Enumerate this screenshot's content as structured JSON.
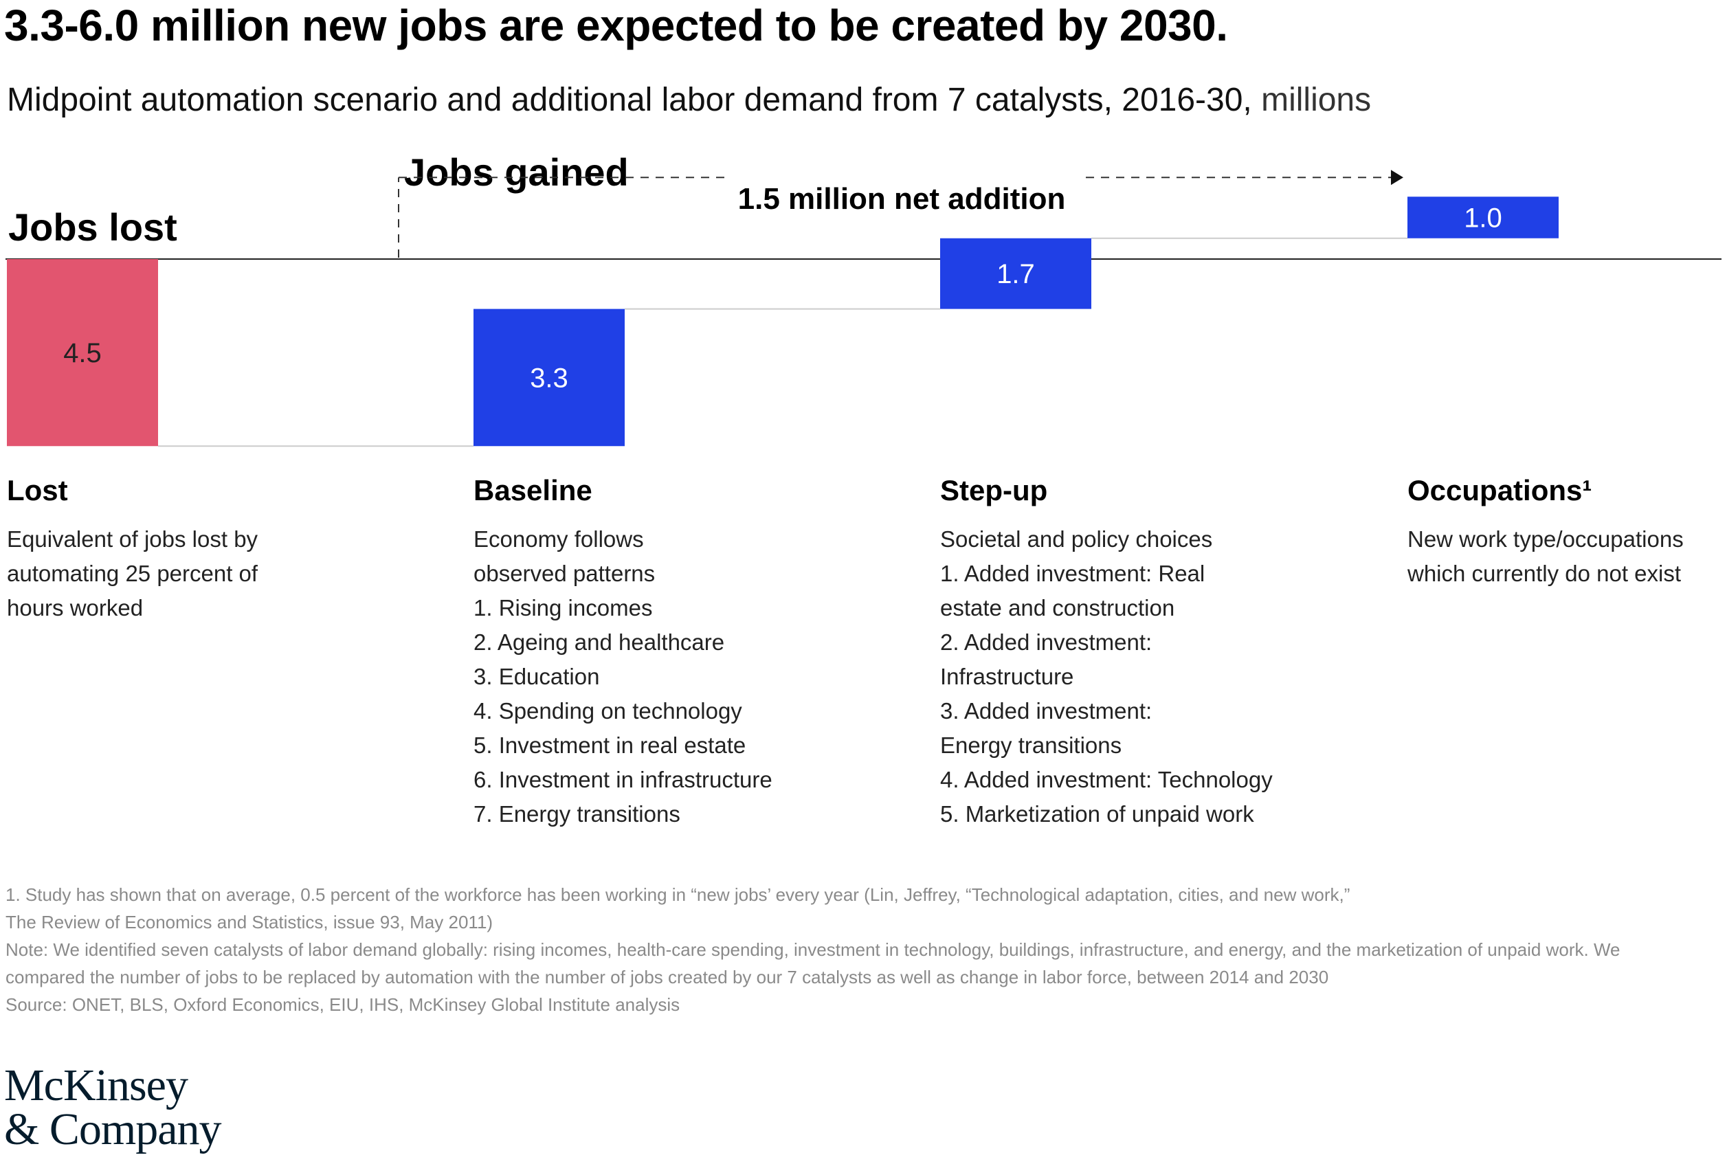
{
  "title": "3.3-6.0 million new jobs are expected to be created by 2030.",
  "subtitle": "Midpoint automation scenario and additional labor demand from 7 catalysts, 2016-30,",
  "subtitle_unit": "millions",
  "labels": {
    "jobs_lost": "Jobs lost",
    "jobs_gained": "Jobs gained",
    "net_addition": "1.5 million net addition"
  },
  "colors": {
    "lost": "#e2556f",
    "gained": "#2040e6",
    "axis": "#222222",
    "connector": "#cccccc"
  },
  "chart_data": {
    "type": "bar",
    "subtype": "waterfall",
    "categories": [
      "Lost",
      "Baseline",
      "Step-up",
      "Occupations¹"
    ],
    "values": [
      -4.5,
      3.3,
      1.7,
      1.0
    ],
    "value_labels": [
      "4.5",
      "3.3",
      "1.7",
      "1.0"
    ],
    "net_total": 1.5,
    "title": "3.3-6.0 million new jobs are expected to be created by 2030.",
    "ylabel": "",
    "ylim": [
      -4.5,
      1.5
    ]
  },
  "columns": [
    {
      "heading": "Lost",
      "lines": [
        "Equivalent of jobs lost by",
        "automating 25 percent of",
        "hours worked"
      ]
    },
    {
      "heading": "Baseline",
      "lines": [
        "Economy follows",
        "observed patterns",
        "1. Rising incomes",
        "2. Ageing and healthcare",
        "3. Education",
        "4. Spending on technology",
        "5. Investment in real estate",
        "6. Investment in infrastructure",
        "7. Energy transitions"
      ]
    },
    {
      "heading": "Step-up",
      "lines": [
        "Societal and policy choices",
        "1. Added investment: Real",
        "estate and construction",
        "2. Added investment:",
        "Infrastructure",
        "3. Added investment:",
        "Energy transitions",
        "4. Added investment: Technology",
        "5. Marketization of unpaid work"
      ]
    },
    {
      "heading": "Occupations¹",
      "lines": [
        "New work type/occupations",
        "which currently do not exist"
      ]
    }
  ],
  "footnotes": [
    "1. Study has shown that on average, 0.5 percent of the workforce has been working in “new jobs’ every year (Lin, Jeffrey, “Technological adaptation, cities, and new work,”",
    "The Review of Economics and Statistics, issue 93, May 2011)",
    "Note: We identified seven catalysts of labor demand globally: rising incomes, health-care spending, investment in technology, buildings, infrastructure, and energy, and the marketization of unpaid work. We",
    "compared the number of jobs to be replaced by automation with the number of jobs created by our 7 catalysts as well as change in labor force, between 2014 and 2030",
    "Source: ONET, BLS, Oxford Economics, EIU, IHS, McKinsey Global Institute analysis"
  ],
  "logo": [
    "McKinsey",
    "& Company"
  ]
}
